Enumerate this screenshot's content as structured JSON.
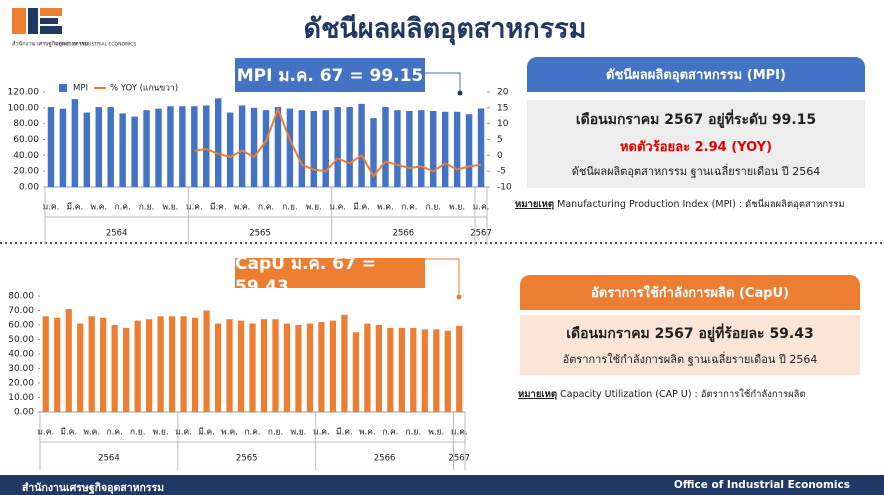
{
  "header": {
    "title": "ดัชนีผลผลิตอุตสาหกรรม",
    "logo_th": "สำนักงาน\nเศรษฐกิจอุตสาหกรรม",
    "logo_en": "OFFICE OF INDUSTRIAL ECONOMICS"
  },
  "chart_data": [
    {
      "type": "combo",
      "title": "MPI ม.ค. 67 = 99.15",
      "categories": [
        "ม.ค.",
        null,
        "มี.ค.",
        null,
        "พ.ค.",
        null,
        "ก.ค.",
        null,
        "ก.ย.",
        null,
        "พ.ย.",
        null,
        "ม.ค.",
        null,
        "มี.ค.",
        null,
        "พ.ค.",
        null,
        "ก.ค.",
        null,
        "ก.ย.",
        null,
        "พ.ย.",
        null,
        "ม.ค.",
        null,
        "มี.ค.",
        null,
        "พ.ค.",
        null,
        "ก.ค.",
        null,
        "ก.ย.",
        null,
        "พ.ย.",
        null,
        "ม.ค."
      ],
      "years": [
        "2564",
        "2565",
        "2566",
        "2567"
      ],
      "series": [
        {
          "name": "MPI",
          "color": "#4472c4",
          "values": [
            101,
            99,
            111,
            94,
            101,
            101,
            93,
            89,
            97,
            99,
            102,
            102,
            102,
            103,
            112,
            94,
            103,
            100,
            97,
            101,
            99,
            97,
            96,
            97,
            101,
            101,
            105,
            87,
            101,
            97,
            96,
            97,
            96,
            95,
            95,
            92,
            99.15
          ]
        },
        {
          "name": "% YOY (แกนขวา)",
          "color": "#ed7d31",
          "axis": "y2",
          "values": [
            null,
            null,
            null,
            null,
            null,
            null,
            null,
            null,
            null,
            null,
            null,
            null,
            1.5,
            2,
            0.5,
            -0.5,
            1.5,
            -0.5,
            4.5,
            14.5,
            5,
            -3,
            -4.5,
            -5,
            -1,
            -2.5,
            0,
            -6.5,
            -2,
            -3,
            -4,
            -3.5,
            -5,
            -2.5,
            -4.5,
            -3.5,
            -2.94
          ]
        }
      ],
      "ylim": [
        0,
        120
      ],
      "yticks": [
        {
          "value": 0,
          "label": "0.00"
        },
        {
          "value": 20,
          "label": "20.00"
        },
        {
          "value": 40,
          "label": "40.00"
        },
        {
          "value": 60,
          "label": "60.00"
        },
        {
          "value": 80,
          "label": "80.00"
        },
        {
          "value": 100,
          "label": "100.00"
        },
        {
          "value": 120,
          "label": "120.00"
        }
      ],
      "y2lim": [
        -10,
        20
      ],
      "y2ticks": [
        -10,
        -5,
        0,
        5,
        10,
        15,
        20
      ],
      "legend": "top-left"
    },
    {
      "type": "bar",
      "title": "CapU ม.ค. 67 = 59.43",
      "categories": [
        "ม.ค.",
        null,
        "มี.ค.",
        null,
        "พ.ค.",
        null,
        "ก.ค.",
        null,
        "ก.ย.",
        null,
        "พ.ย.",
        null,
        "ม.ค.",
        null,
        "มี.ค.",
        null,
        "พ.ค.",
        null,
        "ก.ค.",
        null,
        "ก.ย.",
        null,
        "พ.ย.",
        null,
        "ม.ค.",
        null,
        "มี.ค.",
        null,
        "พ.ค.",
        null,
        "ก.ค.",
        null,
        "ก.ย.",
        null,
        "พ.ย.",
        null,
        "ม.ค."
      ],
      "years": [
        "2564",
        "2565",
        "2566",
        "2567"
      ],
      "series": [
        {
          "color": "#ed7d31",
          "values": [
            66,
            65,
            71,
            61,
            66,
            65,
            60,
            58,
            63,
            64,
            66,
            66,
            66,
            65,
            70,
            61,
            64,
            63,
            61,
            64,
            64,
            61,
            60,
            61,
            62,
            63,
            67,
            55,
            61,
            60,
            58,
            58,
            58,
            57,
            57,
            56,
            59.43
          ]
        }
      ],
      "ylim": [
        0,
        80
      ],
      "yticks": [
        {
          "value": 0,
          "label": "0.00"
        },
        {
          "value": 10,
          "label": "10.00"
        },
        {
          "value": 20,
          "label": "20.00"
        },
        {
          "value": 30,
          "label": "30.00"
        },
        {
          "value": 40,
          "label": "40.00"
        },
        {
          "value": 50,
          "label": "50.00"
        },
        {
          "value": 60,
          "label": "60.00"
        },
        {
          "value": 70,
          "label": "70.00"
        },
        {
          "value": 80,
          "label": "80.00"
        }
      ]
    }
  ],
  "panels": [
    {
      "header": "ดัชนีผลผลิตอุตสาหกรรม (MPI)",
      "lines": [
        "เดือนมกราคม 2567 อยู่ที่ระดับ 99.15",
        "หดตัวร้อยละ 2.94  (YOY)",
        "ดัชนีผลผลิตอุตสาหกรรม ฐานเฉลี่ยรายเดือน ปี 2564"
      ],
      "note_label": "หมายเหตุ",
      "note_text": " Manufacturing Production Index (MPI) : ดัชนีผลผลิตอุตสาหกรรม"
    },
    {
      "header": "อัตราการใช้กำลังการผลิต (CapU)",
      "lines": [
        "เดือนมกราคม 2567 อยู่ที่ร้อยละ 59.43",
        "อัตราการใช้กำลังการผลิต ฐานเฉลี่ยรายเดือน ปี 2564"
      ],
      "note_label": "หมายเหตุ",
      "note_text": " Capacity Utilization (CAP U) : อัตราการใช้กำลังการผลิต"
    }
  ],
  "footer": {
    "left": "สำนักงานเศรษฐกิจอุตสาหกรรม",
    "right": "Office of Industrial Economics"
  }
}
